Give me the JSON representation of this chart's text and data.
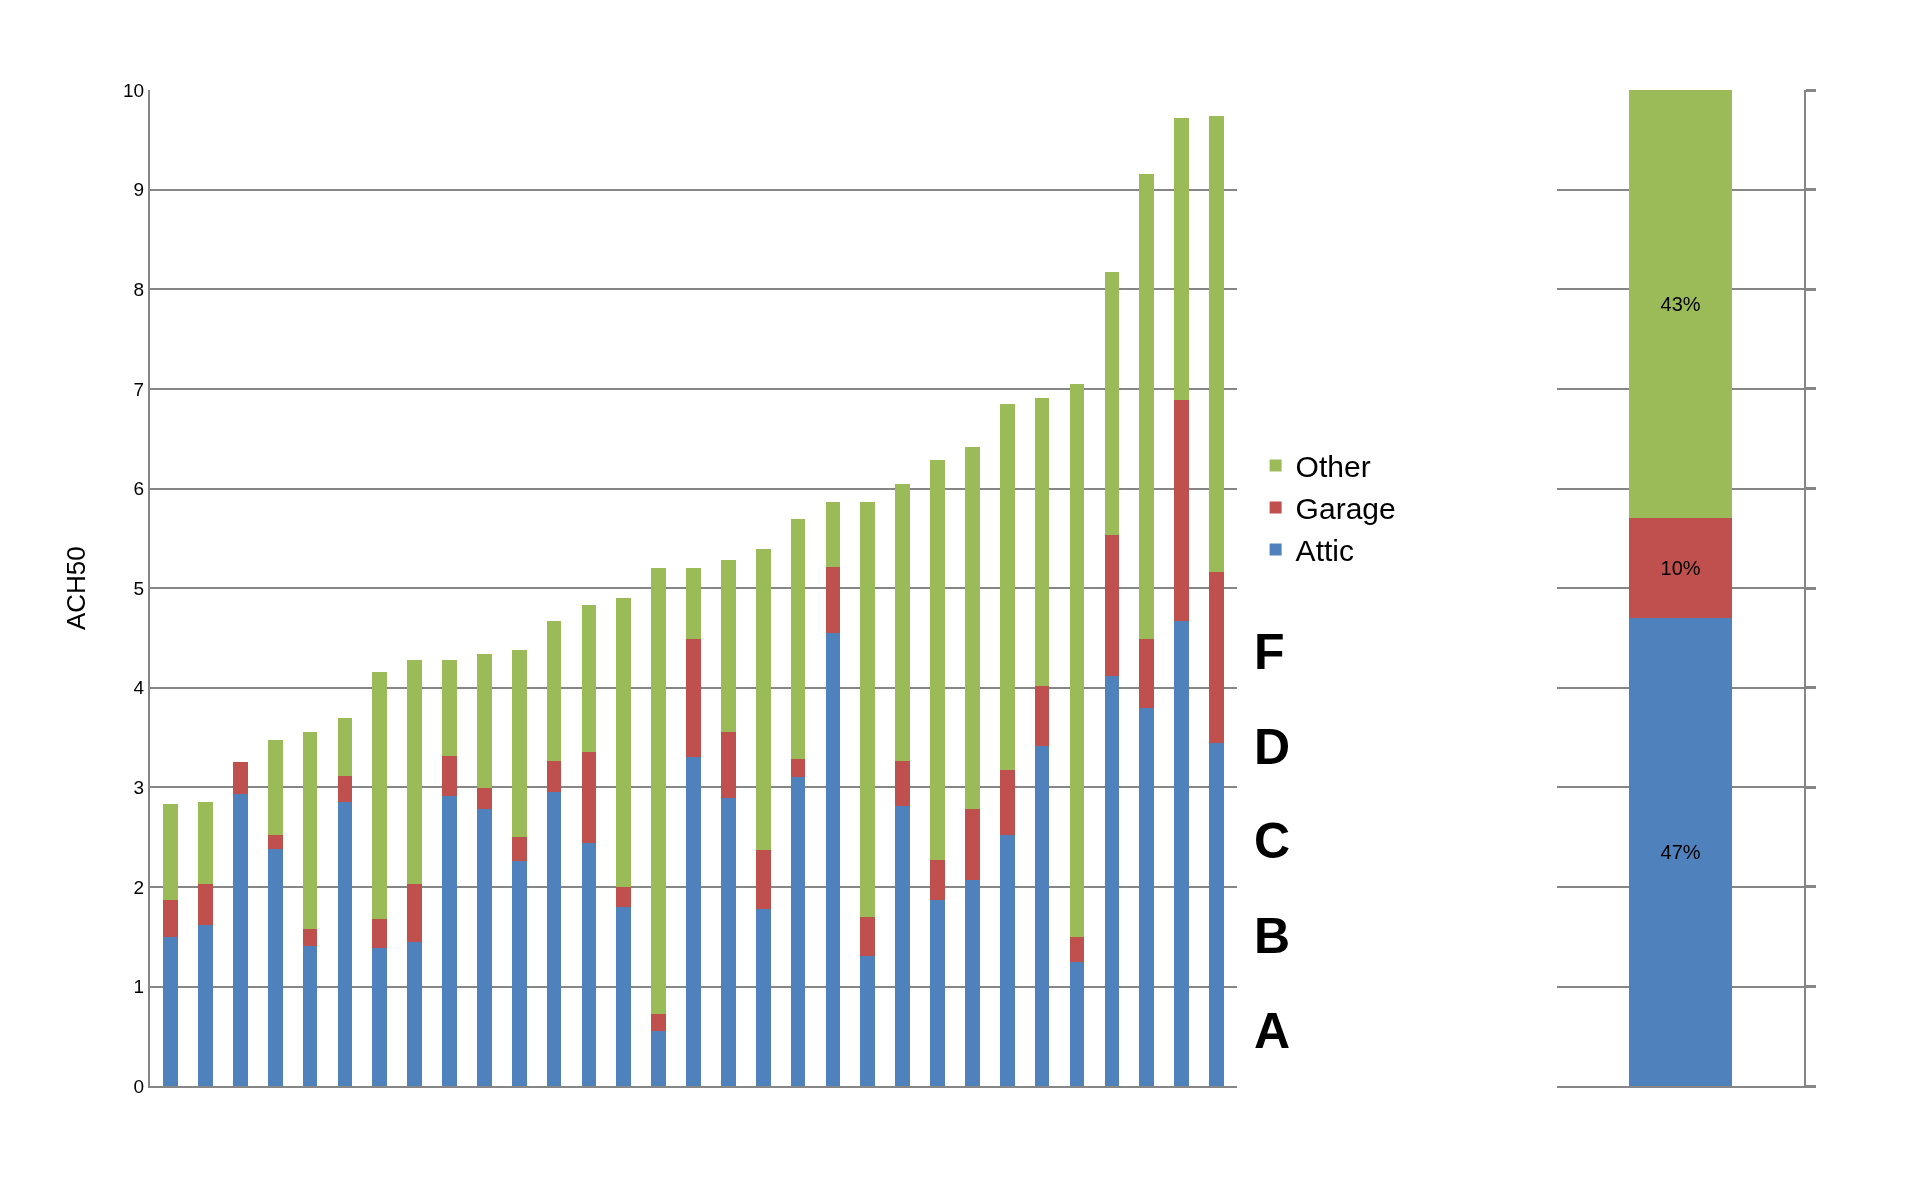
{
  "chart_data": [
    {
      "type": "bar",
      "stacked": true,
      "ylabel": "ACH50",
      "ylim": [
        0,
        10
      ],
      "yticks": [
        0,
        1,
        2,
        3,
        4,
        5,
        6,
        7,
        8,
        9,
        10
      ],
      "grid": "y",
      "legend": "right",
      "categories": [
        null,
        null,
        null,
        null,
        null,
        null,
        null,
        null,
        null,
        null,
        null,
        null,
        null,
        null,
        null,
        null,
        null,
        null,
        null,
        null,
        null,
        null,
        null,
        null,
        null,
        null,
        null,
        null,
        null,
        null,
        null
      ],
      "series": [
        {
          "name": "Attic",
          "color": "#4f81bd",
          "values": [
            1.5,
            1.62,
            2.93,
            2.38,
            1.41,
            2.85,
            1.39,
            1.45,
            2.91,
            2.78,
            2.26,
            2.95,
            2.44,
            1.8,
            0.55,
            3.3,
            2.89,
            1.78,
            3.1,
            4.55,
            1.31,
            2.81,
            1.87,
            2.07,
            2.52,
            3.42,
            1.25,
            4.12,
            3.8,
            4.67,
            3.45
          ]
        },
        {
          "name": "Garage",
          "color": "#c0504d",
          "values": [
            0.37,
            0.41,
            0.32,
            0.14,
            0.17,
            0.26,
            0.29,
            0.58,
            0.41,
            0.21,
            0.24,
            0.31,
            0.92,
            0.2,
            0.18,
            1.19,
            0.67,
            0.59,
            0.18,
            0.66,
            0.39,
            0.45,
            0.4,
            0.71,
            0.65,
            0.6,
            0.25,
            1.41,
            0.69,
            2.22,
            1.71
          ]
        },
        {
          "name": "Other",
          "color": "#9bbb59",
          "values": [
            0.96,
            0.82,
            0,
            0.96,
            1.98,
            0.59,
            2.48,
            2.25,
            0.96,
            1.35,
            1.88,
            1.41,
            1.47,
            2.9,
            4.47,
            0.71,
            1.72,
            3.02,
            2.41,
            0.65,
            4.16,
            2.79,
            4.02,
            3.64,
            3.68,
            2.89,
            5.55,
            2.64,
            4.67,
            2.83,
            4.58
          ]
        }
      ],
      "annotations": [
        "F",
        "D",
        "C",
        "B",
        "A"
      ]
    },
    {
      "type": "bar",
      "stacked": true,
      "ylim": [
        0,
        100
      ],
      "grid": "y",
      "yticks": [
        {
          "value": 0,
          "label": null
        },
        {
          "value": 10,
          "label": null
        },
        {
          "value": 20,
          "label": null
        },
        {
          "value": 30,
          "label": null
        },
        {
          "value": 40,
          "label": null
        },
        {
          "value": 50,
          "label": null
        },
        {
          "value": 60,
          "label": null
        },
        {
          "value": 70,
          "label": null
        },
        {
          "value": 80,
          "label": null
        },
        {
          "value": 90,
          "label": null
        },
        {
          "value": 100,
          "label": null
        }
      ],
      "categories": [
        null
      ],
      "series": [
        {
          "color": "#4f81bd",
          "values": [
            47
          ],
          "value_labels": [
            "47%"
          ]
        },
        {
          "color": "#c0504d",
          "values": [
            10
          ],
          "value_labels": [
            "10%"
          ]
        },
        {
          "color": "#9bbb59",
          "values": [
            43
          ],
          "value_labels": [
            "43%"
          ]
        }
      ]
    }
  ]
}
